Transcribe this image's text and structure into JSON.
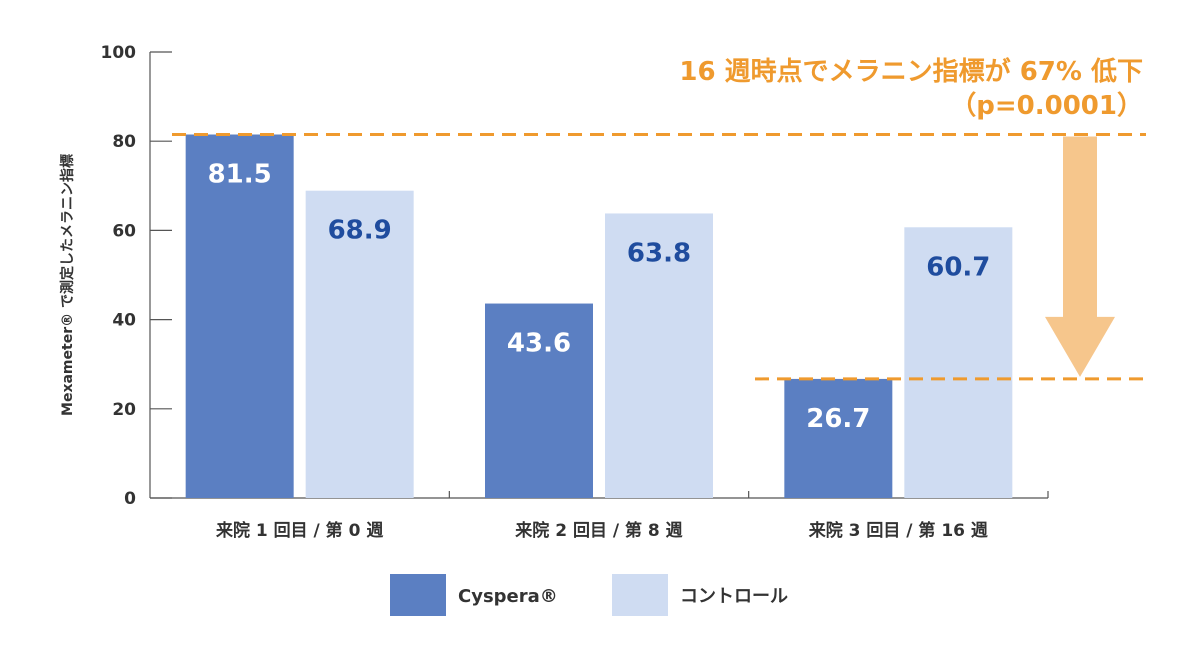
{
  "chart_data": {
    "type": "bar",
    "title": "",
    "xlabel": "",
    "ylabel": "Mexameter® で測定したメラニン指標",
    "ylim": [
      0,
      100
    ],
    "yticks": [
      0,
      20,
      40,
      60,
      80,
      100
    ],
    "categories": [
      "来院 1 回目 / 第 0 週",
      "来院 2 回目 / 第 8 週",
      "来院 3 回目 / 第 16 週"
    ],
    "series": [
      {
        "name": "Cyspera®",
        "values": [
          81.5,
          43.6,
          26.7
        ],
        "color": "#5b7fc2",
        "label_color": "#ffffff"
      },
      {
        "name": "コントロール",
        "values": [
          68.9,
          63.8,
          60.7
        ],
        "color": "#cfdcf2",
        "label_color": "#1f4c9e"
      }
    ],
    "legend_position": "bottom",
    "annotation": {
      "line1": "16 週時点でメラニン指標が 67% 低下",
      "line2": "（p=0.0001）",
      "color": "#ef9a2e",
      "arrow_color": "#f6c68c",
      "from_value": 81.5,
      "to_value": 26.7
    }
  }
}
